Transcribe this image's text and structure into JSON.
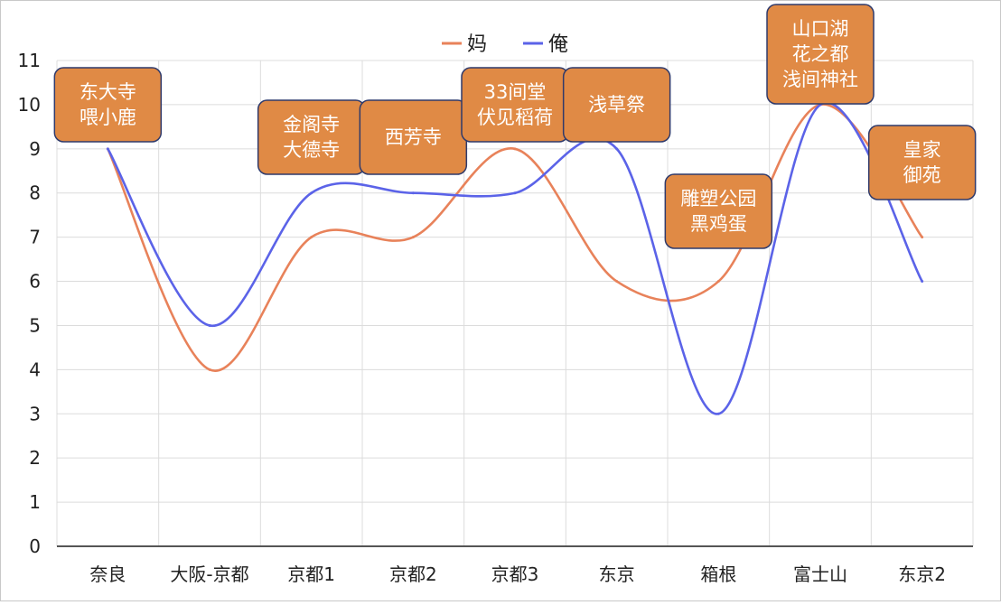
{
  "chart_data": {
    "type": "line",
    "title": "",
    "xlabel": "",
    "ylabel": "",
    "categories": [
      "奈良",
      "大阪-京都",
      "京都1",
      "京都2",
      "京都3",
      "东京",
      "箱根",
      "富士山",
      "东京2"
    ],
    "series": [
      {
        "name": "妈",
        "color": "#e8825a",
        "values": [
          9,
          4,
          7,
          7,
          9,
          6,
          6,
          10,
          7
        ]
      },
      {
        "name": "俺",
        "color": "#5b63e8",
        "values": [
          9,
          5,
          8,
          8,
          8,
          9,
          3,
          10,
          6
        ]
      }
    ],
    "ylim": [
      0,
      11
    ],
    "yticks": [
      "0",
      "1",
      "2",
      "3",
      "4",
      "5",
      "6",
      "7",
      "8",
      "9",
      "10",
      "11"
    ],
    "grid": true,
    "legend_position": "top-center",
    "annotation_style": {
      "fill": "#e08a45",
      "border": "#2f3a6b",
      "text_color": "#ffffff"
    },
    "annotations": [
      {
        "category": "奈良",
        "lines": [
          "东大寺",
          "喂小鹿"
        ]
      },
      {
        "category": "京都1",
        "lines": [
          "金阁寺",
          "大德寺"
        ]
      },
      {
        "category": "京都2",
        "lines": [
          "西芳寺"
        ]
      },
      {
        "category": "京都3",
        "lines": [
          "33间堂",
          "伏见稻荷"
        ]
      },
      {
        "category": "东京",
        "lines": [
          "浅草祭"
        ]
      },
      {
        "category": "箱根",
        "lines": [
          "雕塑公园",
          "黑鸡蛋"
        ]
      },
      {
        "category": "富士山",
        "lines": [
          "山口湖",
          "花之都",
          "浅间神社"
        ]
      },
      {
        "category": "东京2",
        "lines": [
          "皇家",
          "御苑"
        ]
      }
    ]
  }
}
